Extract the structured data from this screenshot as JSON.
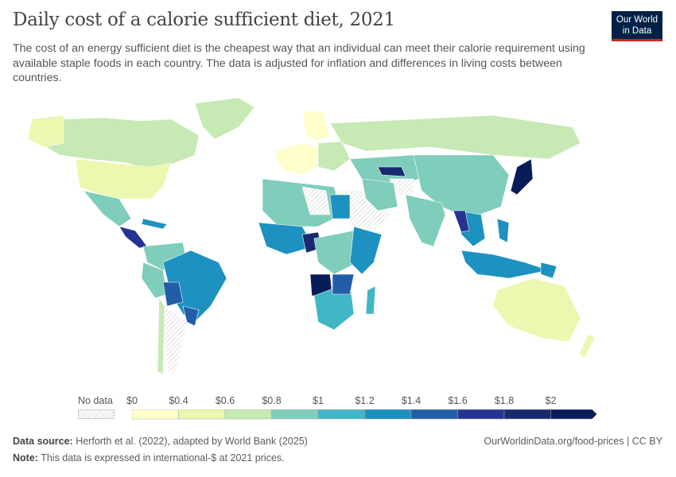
{
  "header": {
    "title": "Daily cost of a calorie sufficient diet, 2021",
    "subtitle": "The cost of an energy sufficient diet is the cheapest way that an individual can meet their calorie requirement using available staple foods in each country. The data is adjusted for inflation and differences in living costs between countries.",
    "logo_line1": "Our World",
    "logo_line2": "in Data"
  },
  "legend": {
    "no_data_label": "No data",
    "labels": [
      "$0",
      "$0.4",
      "$0.6",
      "$0.8",
      "$1",
      "$1.2",
      "$1.4",
      "$1.6",
      "$1.8",
      "$2"
    ],
    "colors": [
      "#ffffcc",
      "#ecf7b0",
      "#c7e9b4",
      "#7fcdbb",
      "#41b6c4",
      "#1d91c0",
      "#225ea8",
      "#253494",
      "#1a2a70",
      "#081d58"
    ]
  },
  "map_colors": {
    "no_data": "#eeeeee",
    "border": "#ffffff",
    "ocean": "#ffffff"
  },
  "footer": {
    "source_label": "Data source:",
    "source_text": " Herforth et al. (2022), adapted by World Bank (2025)",
    "note_label": "Note:",
    "note_text": " This data is expressed in international-$ at 2021 prices.",
    "url": "OurWorldinData.org/food-prices | CC BY"
  }
}
